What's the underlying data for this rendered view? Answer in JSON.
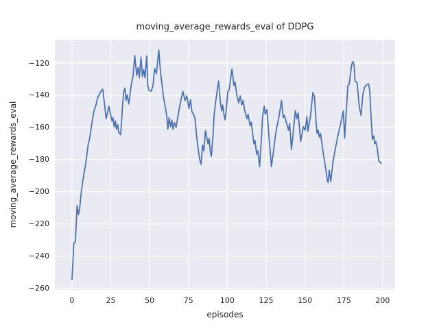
{
  "chart_data": {
    "type": "line",
    "title": "moving_average_rewards_eval of DDPG",
    "xlabel": "episodes",
    "ylabel": "moving_average_rewards_eval",
    "x_ticks": [
      0,
      25,
      50,
      75,
      100,
      125,
      150,
      175,
      200
    ],
    "y_ticks": [
      -120,
      -140,
      -160,
      -180,
      -200,
      -220,
      -240,
      -260
    ],
    "xlim": [
      -11,
      208
    ],
    "ylim": [
      -261,
      -105.5
    ],
    "grid": true,
    "legend_position": "none",
    "colors": {
      "line": "#4c72b0",
      "plot_background": "#eaeaf2",
      "grid": "#ffffff",
      "text": "#262626",
      "figure_background": "#ffffff"
    },
    "series": [
      {
        "name": "moving_average_rewards_eval",
        "x": [
          0,
          0.7,
          1.2,
          2.2,
          3.3,
          4.2,
          5,
          6,
          7,
          8.8,
          10.5,
          11.3,
          13,
          14.2,
          15.5,
          16.4,
          18.6,
          19.8,
          21.1,
          22,
          23.8,
          24.5,
          25.7,
          26.4,
          27.2,
          27.9,
          28.6,
          29.4,
          30.1,
          31.4,
          32.6,
          33.3,
          34.1,
          34.8,
          35.6,
          36.6,
          37.8,
          38.5,
          39.3,
          40.4,
          41.7,
          42.6,
          43.4,
          44.4,
          45.4,
          46.2,
          47,
          48.1,
          48.8,
          49.6,
          51,
          52.2,
          53.2,
          54.4,
          55.9,
          56.9,
          57.6,
          58.8,
          59.9,
          61,
          61.7,
          62.5,
          63.5,
          64.3,
          65,
          66,
          67,
          68.7,
          70,
          71.4,
          72.8,
          73.9,
          75.3,
          76.3,
          77.2,
          78.3,
          79.2,
          80.2,
          81.2,
          82.1,
          83.1,
          84.1,
          84.9,
          85.9,
          87.6,
          88.3,
          89,
          89.7,
          90.8,
          91.5,
          92.5,
          94.4,
          95.5,
          96.4,
          97.1,
          97.8,
          98.6,
          99.6,
          100.3,
          101.1,
          103,
          104.3,
          105,
          106.1,
          107.3,
          108.3,
          109.3,
          110.2,
          111.2,
          112.7,
          113.4,
          114.6,
          115.4,
          117.1,
          117.8,
          118.9,
          119.6,
          120.8,
          122,
          122.7,
          123.7,
          124.4,
          125.5,
          126.7,
          127.4,
          128.4,
          129.6,
          130.8,
          131.8,
          133.3,
          134.9,
          136,
          136.7,
          139.4,
          140.1,
          141.3,
          143.8,
          144.8,
          145.6,
          147.2,
          148.9,
          150.1,
          151.2,
          151.9,
          153.5,
          155.1,
          156.1,
          157.2,
          157.8,
          158.5,
          159.2,
          160,
          161.5,
          162.9,
          164.4,
          164.9,
          165.6,
          166.6,
          168.1,
          169.6,
          171,
          172.5,
          174,
          174.7,
          175.5,
          176.9,
          177.6,
          178.4,
          180.1,
          181,
          181.7,
          182.2,
          183.5,
          185,
          186.1,
          187.2,
          188.4,
          189.9,
          191,
          191.7,
          192.7,
          193.4,
          194.3,
          194.9,
          195.6,
          196.5,
          197.5,
          198.5,
          199
        ],
        "y": [
          -254.5,
          -242,
          -232,
          -231,
          -208.5,
          -214.2,
          -210,
          -200,
          -193,
          -183,
          -170.2,
          -167.4,
          -156,
          -149.7,
          -146,
          -141.8,
          -137.6,
          -136.2,
          -146.8,
          -154.6,
          -146.8,
          -150.3,
          -156,
          -153.9,
          -159.6,
          -156,
          -161,
          -158.2,
          -163.1,
          -164.5,
          -146.1,
          -138.3,
          -135.5,
          -143.3,
          -139.7,
          -145.4,
          -136.2,
          -131.9,
          -128.4,
          -115.2,
          -127.7,
          -122.7,
          -129.1,
          -116.3,
          -128.4,
          -124.1,
          -129.1,
          -115.6,
          -134,
          -136.9,
          -137.5,
          -134,
          -123.4,
          -126.5,
          -111.8,
          -124.8,
          -130.5,
          -140.4,
          -146.5,
          -152.5,
          -161,
          -154,
          -159.6,
          -155.3,
          -161,
          -157,
          -160,
          -150.3,
          -143.5,
          -137.6,
          -143.3,
          -140.4,
          -148.2,
          -142.6,
          -150.3,
          -152,
          -154.5,
          -165.2,
          -173.1,
          -179.5,
          -183,
          -171,
          -174.5,
          -162,
          -170.2,
          -166.7,
          -174.5,
          -178,
          -164.5,
          -152.5,
          -144,
          -131.2,
          -144,
          -149.7,
          -146.1,
          -151.8,
          -155.3,
          -146.1,
          -137.6,
          -136.9,
          -123.7,
          -134,
          -131.9,
          -139.7,
          -144.7,
          -140.4,
          -146.1,
          -143.3,
          -149.7,
          -154.6,
          -151.8,
          -158.9,
          -156.7,
          -170.2,
          -168.1,
          -176.6,
          -174.5,
          -184.4,
          -166,
          -153.2,
          -146.8,
          -151.8,
          -148.9,
          -164.5,
          -173,
          -184.4,
          -175.9,
          -166,
          -160.3,
          -153.2,
          -143.3,
          -153.9,
          -152.5,
          -161.7,
          -157.5,
          -173.7,
          -149.7,
          -154.6,
          -151,
          -168.8,
          -159.6,
          -161.7,
          -153.2,
          -162.4,
          -153,
          -138.3,
          -141,
          -157.5,
          -163.8,
          -161.7,
          -166,
          -163.8,
          -174.5,
          -183,
          -192.9,
          -194.3,
          -186.5,
          -193.6,
          -180.9,
          -173,
          -166,
          -159.6,
          -153,
          -149.7,
          -166.7,
          -144.7,
          -134,
          -133.3,
          -120.6,
          -119.1,
          -122,
          -131.2,
          -131.9,
          -147.5,
          -152.5,
          -139.7,
          -134.8,
          -133.3,
          -133,
          -137.6,
          -156,
          -167.4,
          -165.2,
          -170.2,
          -168.8,
          -173.1,
          -181,
          -181.6,
          -182.5
        ]
      }
    ]
  }
}
